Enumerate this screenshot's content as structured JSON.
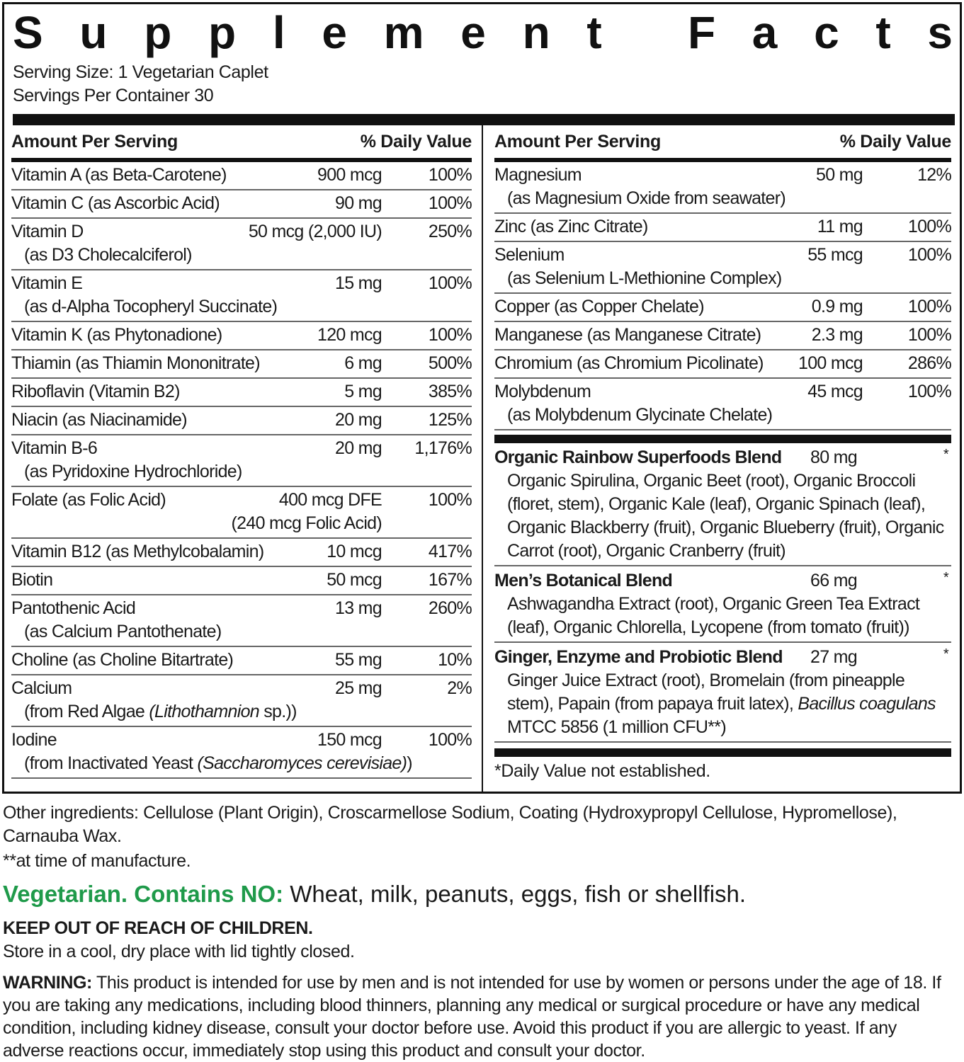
{
  "title": "Supplement Facts",
  "serving_size": "Serving Size: 1 Vegetarian Caplet",
  "servings_per_container": "Servings Per Container 30",
  "header": {
    "amount": "Amount Per Serving",
    "dv": "% Daily Value"
  },
  "left_rows": [
    {
      "name": "Vitamin A (as Beta-Carotene)",
      "amount": "900 mcg",
      "dv": "100%"
    },
    {
      "name": "Vitamin C (as Ascorbic Acid)",
      "amount": "90 mg",
      "dv": "100%"
    },
    {
      "name": "Vitamin D",
      "sub": [
        {
          "t": "(as D3 Cholecalciferol)"
        }
      ],
      "amount": "50 mcg (2,000 IU)",
      "dv": "250%"
    },
    {
      "name": "Vitamin E",
      "sub": [
        {
          "t": "(as d-Alpha Tocopheryl Succinate)"
        }
      ],
      "amount": "15 mg",
      "dv": "100%"
    },
    {
      "name": "Vitamin K (as Phytonadione)",
      "amount": "120 mcg",
      "dv": "100%"
    },
    {
      "name": "Thiamin (as Thiamin Mononitrate)",
      "amount": "6 mg",
      "dv": "500%"
    },
    {
      "name": "Riboflavin (Vitamin B2)",
      "amount": "5 mg",
      "dv": "385%"
    },
    {
      "name": "Niacin (as Niacinamide)",
      "amount": "20 mg",
      "dv": "125%"
    },
    {
      "name": "Vitamin B-6",
      "sub": [
        {
          "t": "(as Pyridoxine Hydrochloride)"
        }
      ],
      "amount": "20 mg",
      "dv": "1,176%"
    },
    {
      "name": "Folate (as Folic Acid)",
      "amount": "400 mcg DFE",
      "amount2": "(240 mcg Folic Acid)",
      "dv": "100%"
    },
    {
      "name": "Vitamin B12 (as Methylcobalamin)",
      "amount": "10 mcg",
      "dv": "417%"
    },
    {
      "name": "Biotin",
      "amount": "50 mcg",
      "dv": "167%"
    },
    {
      "name": "Pantothenic Acid",
      "sub": [
        {
          "t": "(as Calcium Pantothenate)"
        }
      ],
      "amount": "13 mg",
      "dv": "260%"
    },
    {
      "name": "Choline (as Choline Bitartrate)",
      "amount": "55 mg",
      "dv": "10%"
    },
    {
      "name": "Calcium",
      "sub": [
        {
          "t": "(from Red Algae "
        },
        {
          "t": "(Lithothamnion",
          "i": true
        },
        {
          "t": " sp.))"
        }
      ],
      "amount": "25 mg",
      "dv": "2%"
    },
    {
      "name": "Iodine",
      "sub": [
        {
          "t": "(from Inactivated Yeast "
        },
        {
          "t": "(Saccharomyces cerevisiae)",
          "i": true
        },
        {
          "t": ")"
        }
      ],
      "amount": "150 mcg",
      "dv": "100%"
    }
  ],
  "right_rows": [
    {
      "name": "Magnesium",
      "sub": [
        {
          "t": "(as Magnesium Oxide from seawater)"
        }
      ],
      "amount": "50 mg",
      "dv": "12%"
    },
    {
      "name": "Zinc (as Zinc Citrate)",
      "amount": "11 mg",
      "dv": "100%"
    },
    {
      "name": "Selenium",
      "sub": [
        {
          "t": "(as Selenium L-Methionine Complex)"
        }
      ],
      "amount": "55 mcg",
      "dv": "100%"
    },
    {
      "name": "Copper (as Copper Chelate)",
      "amount": "0.9 mg",
      "dv": "100%"
    },
    {
      "name": "Manganese (as Manganese Citrate)",
      "amount": "2.3 mg",
      "dv": "100%"
    },
    {
      "name": "Chromium (as Chromium Picolinate)",
      "amount": "100 mcg",
      "dv": "286%"
    },
    {
      "name": "Molybdenum",
      "sub": [
        {
          "t": "(as Molybdenum Glycinate Chelate)"
        }
      ],
      "amount": "45 mcg",
      "dv": "100%"
    }
  ],
  "blends": [
    {
      "name": "Organic Rainbow Superfoods Blend",
      "amount": "80 mg",
      "mark": "*",
      "desc": [
        {
          "t": "Organic Spirulina, Organic Beet (root), Organic Broccoli (floret, stem), Organic Kale (leaf), Organic Spinach (leaf), Organic Blackberry (fruit), Organic Blueberry (fruit), Organic Carrot (root), Organic Cranberry (fruit)"
        }
      ]
    },
    {
      "name": "Men’s Botanical Blend",
      "amount": "66 mg",
      "mark": "*",
      "desc": [
        {
          "t": "Ashwagandha Extract (root), Organic Green Tea Extract (leaf), Organic Chlorella, Lycopene (from tomato (fruit))"
        }
      ]
    },
    {
      "name": "Ginger, Enzyme and Probiotic Blend",
      "amount": "27 mg",
      "mark": "*",
      "desc": [
        {
          "t": "Ginger Juice Extract (root), Bromelain (from pineapple stem), Papain (from papaya fruit latex), "
        },
        {
          "t": "Bacillus coagulans",
          "i": true
        },
        {
          "t": " MTCC 5856 (1 million CFU**)"
        }
      ]
    }
  ],
  "footnote": "*Daily Value not established.",
  "other_ingredients": "Other ingredients: Cellulose (Plant Origin), Croscarmellose Sodium, Coating (Hydroxypropyl Cellulose, Hypromellose), Carnauba Wax.",
  "manufacture_note": "**at time of manufacture.",
  "vegetarian_label": "Vegetarian. Contains NO:",
  "allergens": " Wheat, milk, peanuts, eggs, fish or shellfish.",
  "keep_out": "KEEP OUT OF REACH OF CHILDREN.",
  "storage": "Store in a cool, dry place with lid tightly closed.",
  "warning_label": "WARNING:",
  "warning_text": " This product is intended for use by men and is not intended for use by women or persons under the age of 18. If you are taking any medications, including blood thinners, planning any medical or surgical procedure or have any medical condition, including kidney disease, consult your doctor before use. Avoid this product if you are allergic to yeast. If any adverse reactions occur, immediately stop using this product and consult your doctor.",
  "colors": {
    "accent_green": "#1f9a4a",
    "text": "#1a1a1a"
  }
}
